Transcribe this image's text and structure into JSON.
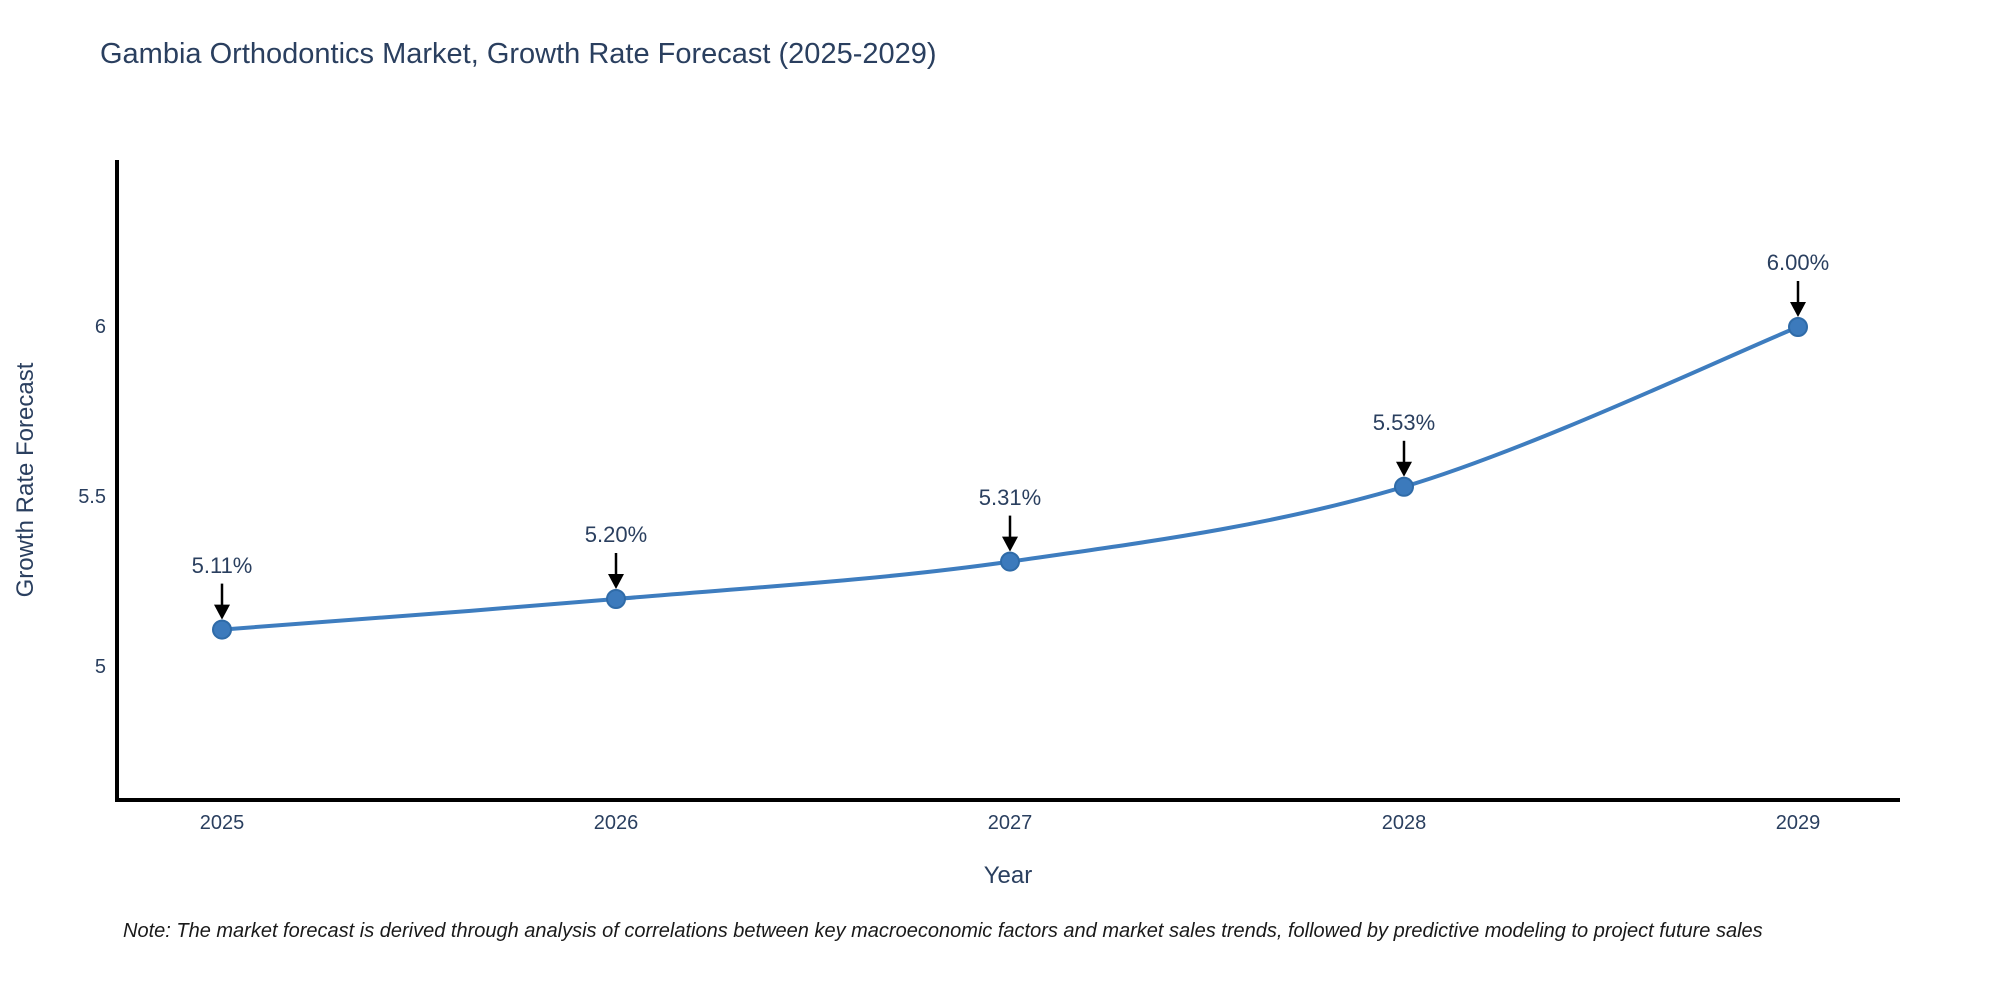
{
  "note": {
    "text": "Note: The market forecast is derived through analysis of correlations between key macroeconomic factors and market sales trends, followed by predictive modeling to project future sales"
  },
  "chart_data": {
    "type": "line",
    "title": "Gambia Orthodontics Market, Growth Rate Forecast (2025-2029)",
    "categories": [
      "2025",
      "2026",
      "2027",
      "2028",
      "2029"
    ],
    "values": [
      5.11,
      5.2,
      5.31,
      5.53,
      6.0
    ],
    "point_labels": [
      "5.11%",
      "5.20%",
      "5.31%",
      "5.53%",
      "6.00%"
    ],
    "xlabel": "Year",
    "ylabel": "Growth Rate Forecast",
    "yticks": [
      5,
      5.5,
      6
    ],
    "ytick_labels": [
      "5",
      "5.5",
      "6"
    ],
    "ylim": [
      4.61,
      6.49
    ],
    "grid": false,
    "legend": false,
    "line_shape": "spline",
    "line_color": "#3e7dbf",
    "marker_color": "#3c7abc",
    "marker_edge_color": "#2f6ba8",
    "arrow_color": "#000000",
    "text_color": "#2a3f5f",
    "axis_color": "#000000",
    "background": "#ffffff"
  }
}
